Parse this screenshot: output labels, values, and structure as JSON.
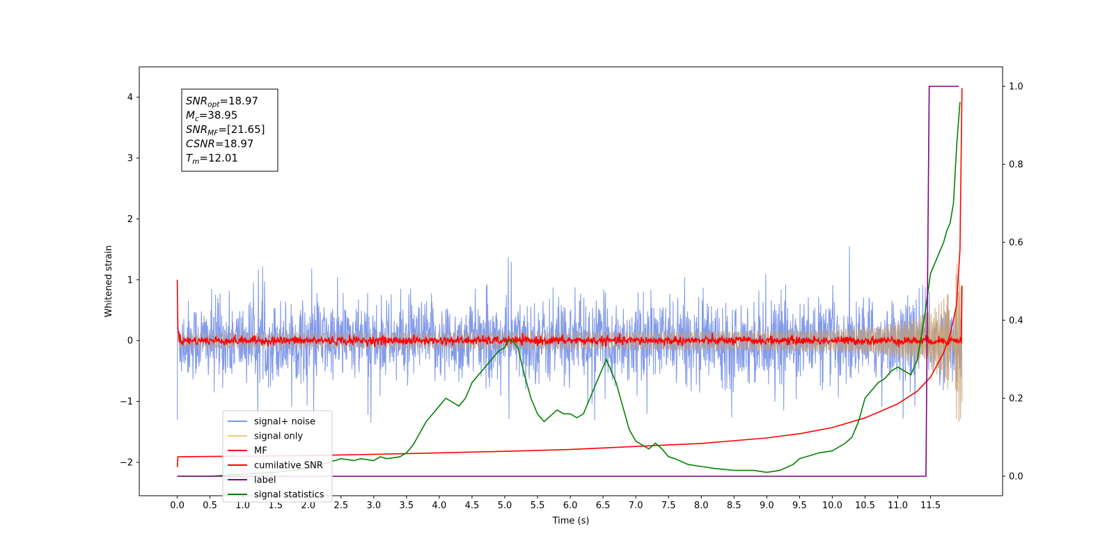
{
  "chart_data": {
    "type": "line",
    "xlabel": "Time (s)",
    "ylabel": "Whitened strain",
    "xlim": [
      -0.58,
      12.6
    ],
    "ylim_left": [
      -2.55,
      4.5
    ],
    "ylim_right": [
      -0.05,
      1.05
    ],
    "x_ticks": [
      0.0,
      0.5,
      1.0,
      1.5,
      2.0,
      2.5,
      3.0,
      3.5,
      4.0,
      4.5,
      5.0,
      5.5,
      6.0,
      6.5,
      7.0,
      7.5,
      8.0,
      8.5,
      9.0,
      9.5,
      10.0,
      10.5,
      11.0,
      11.5
    ],
    "x_tick_labels": [
      "0.0",
      "0.5",
      "1.0",
      "1.5",
      "2.0",
      "2.5",
      "3.0",
      "3.5",
      "4.0",
      "4.5",
      "5.0",
      "5.5",
      "6.0",
      "6.5",
      "7.0",
      "7.5",
      "8.0",
      "8.5",
      "9.0",
      "9.5",
      "10.0",
      "10.5",
      "11.0",
      "11.5"
    ],
    "y_left_ticks": [
      -2,
      -1,
      0,
      1,
      2,
      3,
      4
    ],
    "y_left_tick_labels": [
      "−2",
      "−1",
      "0",
      "1",
      "2",
      "3",
      "4"
    ],
    "y_right_ticks": [
      0.0,
      0.2,
      0.4,
      0.6,
      0.8,
      1.0
    ],
    "y_right_tick_labels": [
      "0.0",
      "0.2",
      "0.4",
      "0.6",
      "0.8",
      "1.0"
    ],
    "grid": false,
    "legend_position": "bottom-left",
    "annotation": [
      {
        "base": "SNR",
        "sub": "opt",
        "value": "=18.97"
      },
      {
        "base": "M",
        "sub": "c",
        "value": "=38.95"
      },
      {
        "base": "SNR",
        "sub": "MF",
        "value": "=[21.65]"
      },
      {
        "base": "CSNR",
        "sub": "",
        "value": "=18.97"
      },
      {
        "base": "T",
        "sub": "m",
        "value": "=12.01"
      }
    ],
    "series": [
      {
        "name": "signal+ noise",
        "color": "#7b95e8",
        "axis": "left",
        "kind": "noise",
        "x_range": [
          0.0,
          11.98
        ],
        "typical_amplitude": 0.6,
        "max_peak": 1.55,
        "min_trough": -1.35
      },
      {
        "name": "signal only",
        "color": "#f5c87a",
        "axis": "left",
        "kind": "chirp",
        "x_range": [
          0.0,
          11.98
        ],
        "final_amplitude": 1.35
      },
      {
        "name": "MF",
        "color": "#ff0000",
        "axis": "left",
        "kind": "noise-around-zero",
        "x_range": [
          0.0,
          11.98
        ],
        "start_value": 1.0,
        "typical_amplitude": 0.07,
        "end_value": 0.9
      },
      {
        "name": "cumilative SNR",
        "color": "#ff0000",
        "axis": "left",
        "x": [
          0.0,
          0.01,
          0.5,
          1.0,
          2.0,
          3.0,
          4.0,
          5.0,
          6.0,
          7.0,
          8.0,
          9.0,
          9.5,
          10.0,
          10.5,
          11.0,
          11.3,
          11.5,
          11.7,
          11.8,
          11.9,
          11.95,
          11.98
        ],
        "y": [
          -2.08,
          -1.91,
          -1.905,
          -1.9,
          -1.89,
          -1.87,
          -1.845,
          -1.82,
          -1.79,
          -1.74,
          -1.69,
          -1.6,
          -1.53,
          -1.43,
          -1.27,
          -1.04,
          -0.83,
          -0.6,
          -0.2,
          0.1,
          0.6,
          1.5,
          4.15
        ]
      },
      {
        "name": "label",
        "color": "#800080",
        "axis": "right",
        "x": [
          0.0,
          11.43,
          11.48,
          11.93
        ],
        "y": [
          0.0,
          0.0,
          1.0,
          1.0
        ]
      },
      {
        "name": "signal statistics",
        "color": "#008000",
        "axis": "right",
        "x": [
          0.0,
          0.5,
          1.0,
          1.5,
          2.0,
          2.3,
          2.5,
          2.7,
          2.8,
          3.0,
          3.1,
          3.2,
          3.4,
          3.5,
          3.6,
          3.7,
          3.8,
          3.9,
          4.0,
          4.1,
          4.2,
          4.3,
          4.4,
          4.5,
          4.6,
          4.7,
          4.8,
          4.9,
          5.0,
          5.05,
          5.1,
          5.15,
          5.2,
          5.3,
          5.4,
          5.5,
          5.6,
          5.7,
          5.8,
          5.9,
          6.0,
          6.1,
          6.2,
          6.3,
          6.4,
          6.5,
          6.55,
          6.6,
          6.7,
          6.8,
          6.9,
          7.0,
          7.1,
          7.2,
          7.3,
          7.4,
          7.5,
          7.6,
          7.8,
          8.0,
          8.2,
          8.5,
          8.8,
          9.0,
          9.2,
          9.4,
          9.5,
          9.6,
          9.8,
          10.0,
          10.1,
          10.2,
          10.3,
          10.4,
          10.5,
          10.6,
          10.7,
          10.8,
          10.9,
          11.0,
          11.1,
          11.2,
          11.3,
          11.4,
          11.5,
          11.6,
          11.7,
          11.75,
          11.8,
          11.85,
          11.9,
          11.95
        ],
        "y": [
          0.0,
          0.0,
          0.005,
          0.01,
          0.02,
          0.035,
          0.045,
          0.04,
          0.045,
          0.04,
          0.05,
          0.045,
          0.05,
          0.06,
          0.08,
          0.11,
          0.14,
          0.16,
          0.18,
          0.2,
          0.19,
          0.18,
          0.2,
          0.24,
          0.26,
          0.28,
          0.3,
          0.32,
          0.33,
          0.35,
          0.35,
          0.34,
          0.33,
          0.26,
          0.2,
          0.16,
          0.14,
          0.155,
          0.17,
          0.16,
          0.16,
          0.15,
          0.16,
          0.2,
          0.24,
          0.28,
          0.3,
          0.28,
          0.24,
          0.18,
          0.12,
          0.09,
          0.08,
          0.07,
          0.085,
          0.07,
          0.05,
          0.045,
          0.03,
          0.025,
          0.02,
          0.015,
          0.015,
          0.01,
          0.015,
          0.03,
          0.045,
          0.05,
          0.06,
          0.065,
          0.075,
          0.085,
          0.1,
          0.14,
          0.2,
          0.22,
          0.24,
          0.25,
          0.27,
          0.28,
          0.27,
          0.26,
          0.3,
          0.4,
          0.52,
          0.56,
          0.6,
          0.63,
          0.65,
          0.7,
          0.85,
          0.96
        ]
      }
    ]
  }
}
